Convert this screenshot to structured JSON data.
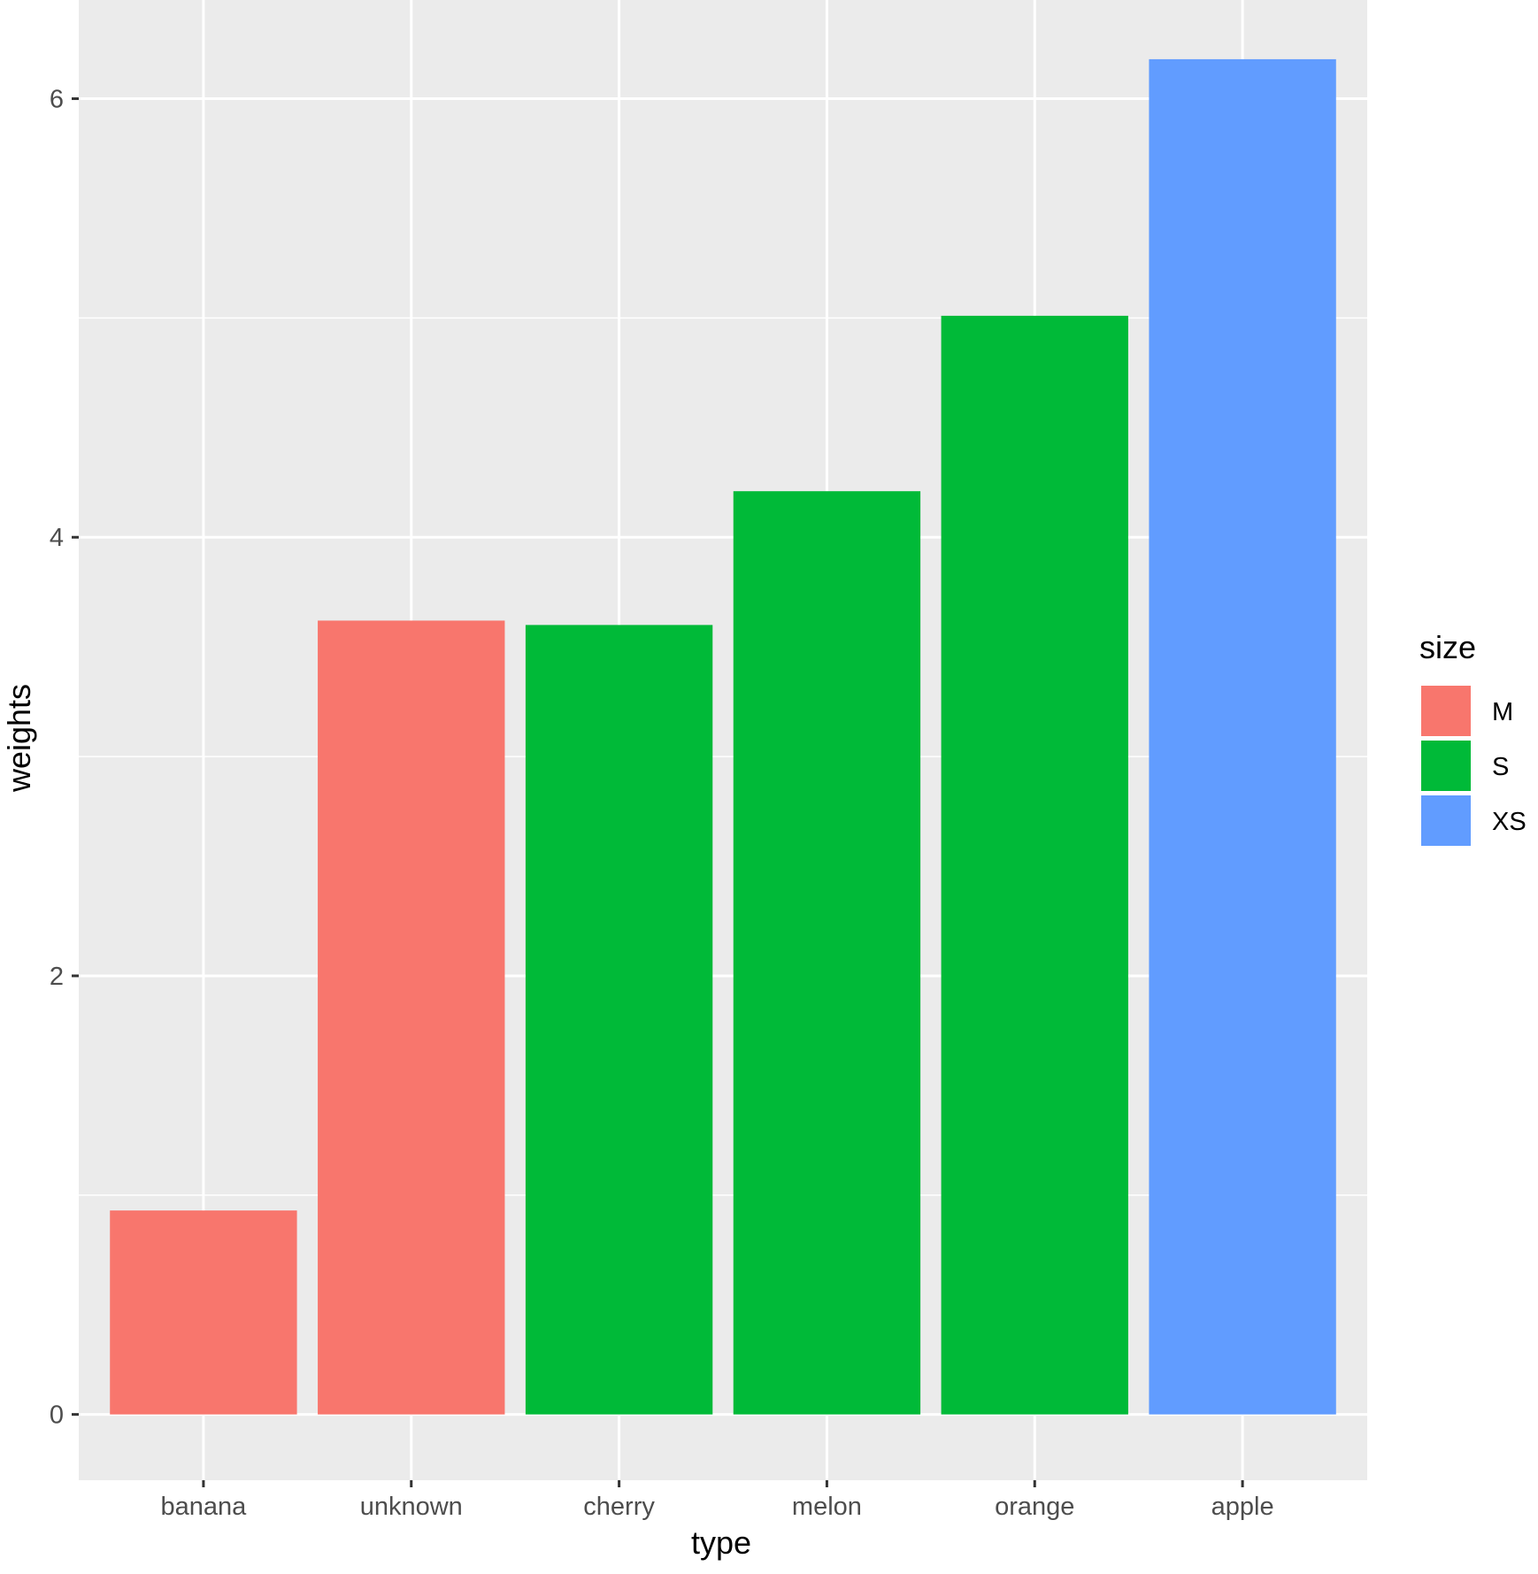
{
  "chart_data": {
    "type": "bar",
    "categories": [
      "banana",
      "unknown",
      "cherry",
      "melon",
      "orange",
      "apple"
    ],
    "values": [
      0.93,
      3.62,
      3.6,
      4.21,
      5.01,
      6.18
    ],
    "groups": [
      "M",
      "M",
      "S",
      "S",
      "S",
      "XS"
    ],
    "xlabel": "type",
    "ylabel": "weights",
    "ylim": [
      -0.3,
      6.45
    ],
    "yticks": [
      0,
      2,
      4,
      6
    ],
    "grid": true,
    "legend": {
      "title": "size",
      "placement": "right",
      "entries": [
        {
          "label": "M",
          "color": "#F8766D"
        },
        {
          "label": "S",
          "color": "#00BA38"
        },
        {
          "label": "XS",
          "color": "#619CFF"
        }
      ]
    },
    "colors": {
      "panel_background": "#EBEBEB",
      "grid_line": "#FFFFFF",
      "tick_text": "#4D4D4D",
      "tick_mark": "#333333"
    }
  }
}
